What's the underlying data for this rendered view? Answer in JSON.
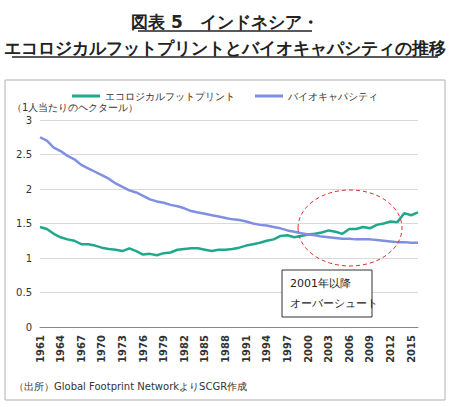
{
  "chart_data": {
    "type": "line",
    "title": "図表 5　インドネシア・\nエコロジカルフットプリントとバイオキャパシティの推移",
    "y_label": "（1人当たりのヘクタール）",
    "source": "（出所）Global Footprint NetworkよりSCGR作成",
    "annotations": [
      "2001年以降",
      "オーバーシュート"
    ],
    "categories": [
      "1961",
      null,
      null,
      "1964",
      null,
      null,
      "1967",
      null,
      null,
      "1970",
      null,
      null,
      "1973",
      null,
      null,
      "1976",
      null,
      null,
      "1979",
      null,
      null,
      "1982",
      null,
      null,
      "1985",
      null,
      null,
      "1988",
      null,
      null,
      "1991",
      null,
      null,
      "1994",
      null,
      null,
      "1997",
      null,
      null,
      "2000",
      null,
      null,
      "2003",
      null,
      null,
      "2006",
      null,
      null,
      "2009",
      null,
      null,
      "2012",
      null,
      null,
      "2015",
      null
    ],
    "series": [
      {
        "name": "エコロジカルフットプリント",
        "color": "#1fa98a",
        "values": [
          1.45,
          1.42,
          1.35,
          1.3,
          1.27,
          1.25,
          1.2,
          1.2,
          1.18,
          1.15,
          1.13,
          1.12,
          1.1,
          1.14,
          1.1,
          1.05,
          1.06,
          1.04,
          1.07,
          1.08,
          1.12,
          1.13,
          1.14,
          1.14,
          1.12,
          1.1,
          1.12,
          1.12,
          1.13,
          1.15,
          1.18,
          1.2,
          1.22,
          1.25,
          1.27,
          1.32,
          1.33,
          1.3,
          1.32,
          1.34,
          1.35,
          1.37,
          1.4,
          1.38,
          1.35,
          1.42,
          1.42,
          1.45,
          1.43,
          1.48,
          1.5,
          1.53,
          1.52,
          1.65,
          1.62,
          1.66
        ]
      },
      {
        "name": "バイオキャパシティ",
        "color": "#7f8fe3",
        "values": [
          2.75,
          2.7,
          2.6,
          2.55,
          2.48,
          2.43,
          2.35,
          2.3,
          2.25,
          2.2,
          2.15,
          2.08,
          2.03,
          1.98,
          1.95,
          1.9,
          1.85,
          1.82,
          1.8,
          1.77,
          1.75,
          1.72,
          1.68,
          1.66,
          1.64,
          1.62,
          1.6,
          1.58,
          1.56,
          1.55,
          1.53,
          1.5,
          1.48,
          1.47,
          1.45,
          1.43,
          1.4,
          1.38,
          1.36,
          1.34,
          1.33,
          1.31,
          1.3,
          1.29,
          1.28,
          1.28,
          1.27,
          1.27,
          1.27,
          1.26,
          1.25,
          1.24,
          1.23,
          1.23,
          1.22,
          1.22
        ]
      }
    ],
    "ylim": [
      0,
      3
    ],
    "yticks": [
      0,
      0.5,
      1,
      1.5,
      2,
      2.5,
      3
    ],
    "grid": true,
    "legend": "top"
  }
}
